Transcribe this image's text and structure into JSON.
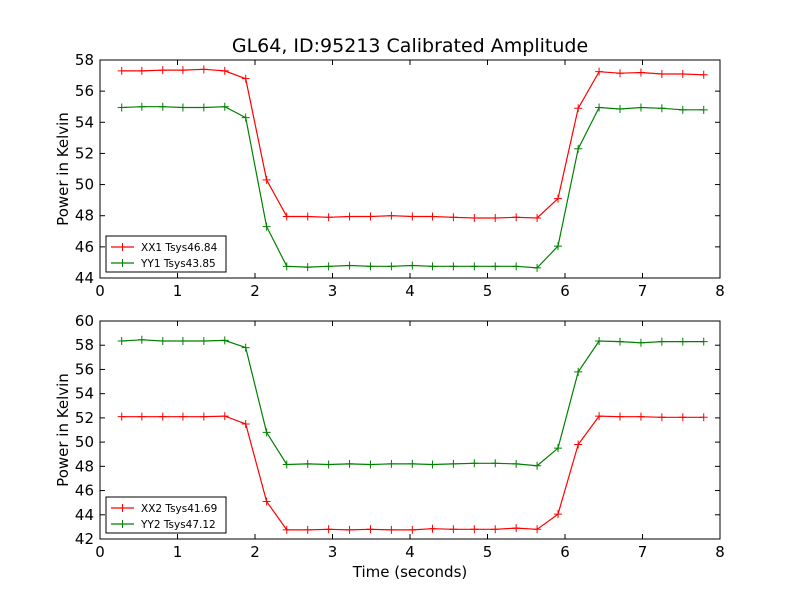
{
  "title": "GL64, ID:95213 Calibrated Amplitude",
  "chart_data": [
    {
      "type": "line",
      "ylabel": "Power in Kelvin",
      "xlabel": "",
      "xlim": [
        0,
        8
      ],
      "ylim": [
        44,
        58
      ],
      "xticks": [
        "0",
        "1",
        "2",
        "3",
        "4",
        "5",
        "6",
        "7",
        "8"
      ],
      "yticks": [
        "44",
        "46",
        "48",
        "50",
        "52",
        "54",
        "56",
        "58"
      ],
      "legend_position": "lower-left",
      "series": [
        {
          "name": "XX1 Tsys46.84",
          "color": "#ff0000",
          "x": [
            0.28,
            0.54,
            0.81,
            1.07,
            1.34,
            1.61,
            1.88,
            2.15,
            2.41,
            2.68,
            2.95,
            3.22,
            3.49,
            3.76,
            4.03,
            4.29,
            4.56,
            4.83,
            5.1,
            5.37,
            5.64,
            5.91,
            6.17,
            6.44,
            6.71,
            6.98,
            7.25,
            7.52,
            7.79
          ],
          "y": [
            57.3,
            57.3,
            57.35,
            57.35,
            57.4,
            57.3,
            56.8,
            50.3,
            47.95,
            47.95,
            47.9,
            47.95,
            47.95,
            48.0,
            47.95,
            47.95,
            47.9,
            47.85,
            47.85,
            47.9,
            47.85,
            49.1,
            54.9,
            57.25,
            57.15,
            57.2,
            57.1,
            57.1,
            57.05
          ]
        },
        {
          "name": "YY1 Tsys43.85",
          "color": "#008000",
          "x": [
            0.28,
            0.54,
            0.81,
            1.07,
            1.34,
            1.61,
            1.88,
            2.15,
            2.41,
            2.68,
            2.95,
            3.22,
            3.49,
            3.76,
            4.03,
            4.29,
            4.56,
            4.83,
            5.1,
            5.37,
            5.64,
            5.91,
            6.17,
            6.44,
            6.71,
            6.98,
            7.25,
            7.52,
            7.79
          ],
          "y": [
            54.95,
            55.0,
            55.0,
            54.95,
            54.95,
            55.0,
            54.3,
            47.3,
            44.75,
            44.7,
            44.75,
            44.8,
            44.75,
            44.75,
            44.8,
            44.75,
            44.75,
            44.75,
            44.75,
            44.75,
            44.65,
            46.05,
            52.3,
            54.95,
            54.85,
            54.95,
            54.9,
            54.8,
            54.8
          ]
        }
      ]
    },
    {
      "type": "line",
      "ylabel": "Power in Kelvin",
      "xlabel": "Time (seconds)",
      "xlim": [
        0,
        8
      ],
      "ylim": [
        42,
        60
      ],
      "xticks": [
        "0",
        "1",
        "2",
        "3",
        "4",
        "5",
        "6",
        "7",
        "8"
      ],
      "yticks": [
        "42",
        "44",
        "46",
        "48",
        "50",
        "52",
        "54",
        "56",
        "58",
        "60"
      ],
      "legend_position": "lower-left",
      "series": [
        {
          "name": "XX2 Tsys41.69",
          "color": "#ff0000",
          "x": [
            0.28,
            0.54,
            0.81,
            1.07,
            1.34,
            1.61,
            1.88,
            2.15,
            2.41,
            2.68,
            2.95,
            3.22,
            3.49,
            3.76,
            4.03,
            4.29,
            4.56,
            4.83,
            5.1,
            5.37,
            5.64,
            5.91,
            6.17,
            6.44,
            6.71,
            6.98,
            7.25,
            7.52,
            7.79
          ],
          "y": [
            52.1,
            52.1,
            52.1,
            52.1,
            52.1,
            52.15,
            51.5,
            45.1,
            42.75,
            42.75,
            42.8,
            42.75,
            42.8,
            42.75,
            42.75,
            42.85,
            42.8,
            42.8,
            42.8,
            42.9,
            42.8,
            44.05,
            49.8,
            52.15,
            52.1,
            52.1,
            52.05,
            52.05,
            52.05
          ]
        },
        {
          "name": "YY2 Tsys47.12",
          "color": "#008000",
          "x": [
            0.28,
            0.54,
            0.81,
            1.07,
            1.34,
            1.61,
            1.88,
            2.15,
            2.41,
            2.68,
            2.95,
            3.22,
            3.49,
            3.76,
            4.03,
            4.29,
            4.56,
            4.83,
            5.1,
            5.37,
            5.64,
            5.91,
            6.17,
            6.44,
            6.71,
            6.98,
            7.25,
            7.52,
            7.79
          ],
          "y": [
            58.35,
            58.45,
            58.35,
            58.35,
            58.35,
            58.4,
            57.8,
            50.8,
            48.15,
            48.2,
            48.15,
            48.2,
            48.15,
            48.2,
            48.2,
            48.15,
            48.2,
            48.25,
            48.25,
            48.2,
            48.05,
            49.5,
            55.8,
            58.35,
            58.3,
            58.2,
            58.3,
            58.3,
            58.3
          ]
        }
      ]
    }
  ]
}
